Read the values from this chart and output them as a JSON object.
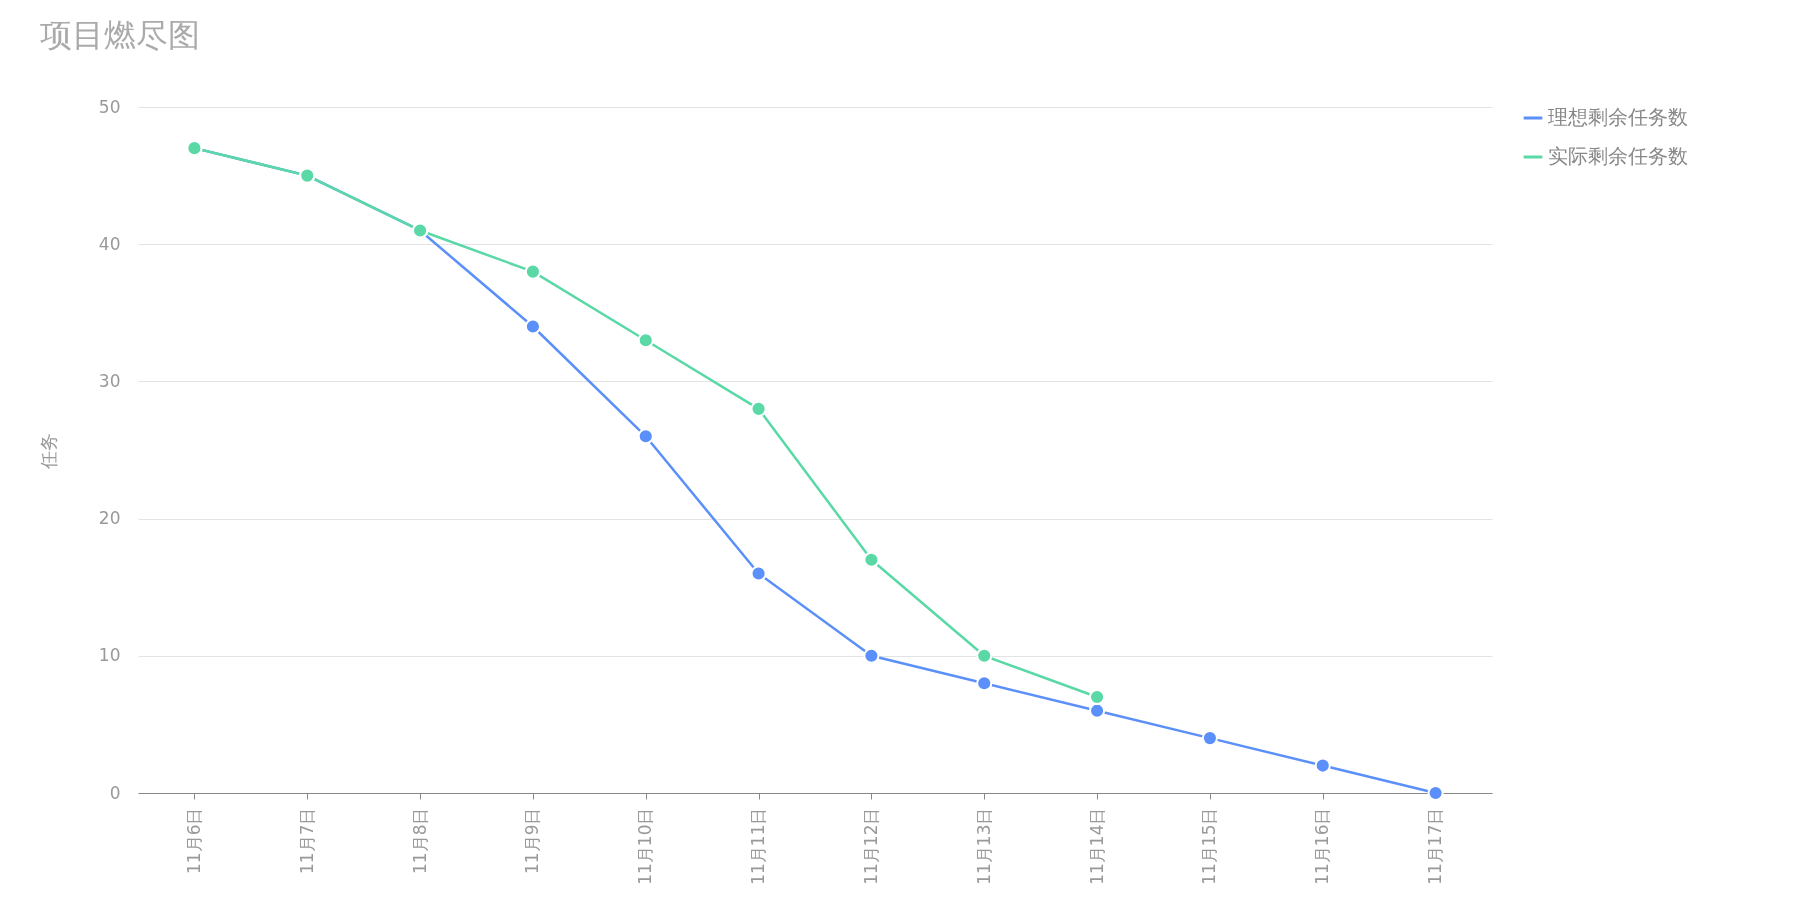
{
  "chart_data": {
    "type": "line",
    "title": "项目燃尽图",
    "ylabel": "任务",
    "categories": [
      "11月6日",
      "11月7日",
      "11月8日",
      "11月9日",
      "11月10日",
      "11月11日",
      "11月12日",
      "11月13日",
      "11月14日",
      "11月15日",
      "11月16日",
      "11月17日"
    ],
    "series": [
      {
        "name": "理想剩余任务数",
        "color": "#5b8ff9",
        "values": [
          47,
          45,
          41,
          34,
          26,
          16,
          10,
          8,
          6,
          4,
          2,
          0
        ]
      },
      {
        "name": "实际剩余任务数",
        "color": "#5ad8a6",
        "values": [
          47,
          45,
          41,
          38,
          33,
          28,
          17,
          10,
          7,
          null,
          null,
          null
        ]
      }
    ],
    "ylim": [
      0,
      50
    ],
    "yticks": [
      0,
      10,
      20,
      30,
      40,
      50
    ],
    "grid": "y",
    "legend": "right",
    "marker": "circle",
    "line_style": "solid"
  }
}
